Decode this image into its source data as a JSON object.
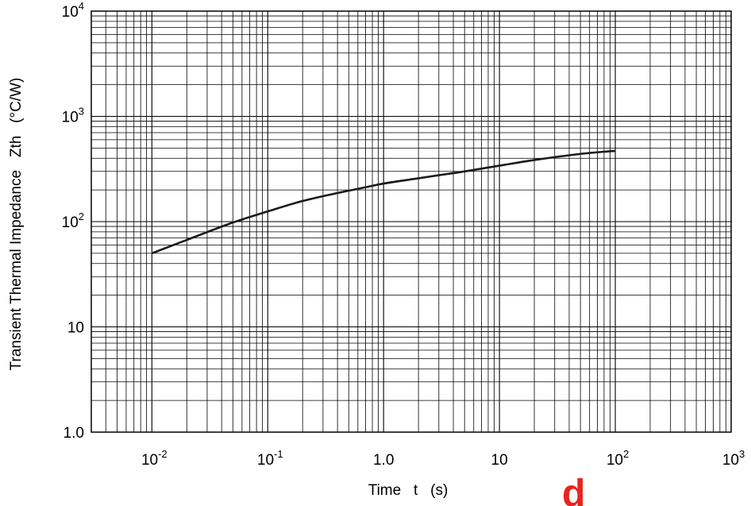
{
  "chart_data": {
    "type": "line",
    "xscale": "log",
    "yscale": "log",
    "xlim": [
      0.003,
      1000
    ],
    "ylim": [
      1,
      10000
    ],
    "grid": true,
    "xlabel": "Time   t   (s)",
    "ylabel": "Transient Thermal Impedance   Zth   (°C/W)",
    "x_ticks": [
      {
        "value": 0.01,
        "base": "10",
        "exp": "-2"
      },
      {
        "value": 0.1,
        "base": "10",
        "exp": "-1"
      },
      {
        "value": 1,
        "base": "1.0",
        "exp": ""
      },
      {
        "value": 10,
        "base": "10",
        "exp": ""
      },
      {
        "value": 100,
        "base": "10",
        "exp": "2"
      },
      {
        "value": 1000,
        "base": "10",
        "exp": "3"
      }
    ],
    "y_ticks": [
      {
        "value": 1,
        "base": "1.0",
        "exp": ""
      },
      {
        "value": 10,
        "base": "10",
        "exp": ""
      },
      {
        "value": 100,
        "base": "10",
        "exp": "2"
      },
      {
        "value": 1000,
        "base": "10",
        "exp": "3"
      },
      {
        "value": 10000,
        "base": "10",
        "exp": "4"
      }
    ],
    "series": [
      {
        "color": "#1a1a1a",
        "x": [
          0.01,
          0.02,
          0.05,
          0.1,
          0.2,
          0.4,
          0.7,
          1,
          2,
          3,
          5,
          10,
          20,
          50,
          100
        ],
        "y": [
          50,
          67,
          98,
          125,
          157,
          187,
          212,
          230,
          258,
          276,
          300,
          340,
          385,
          440,
          470
        ]
      }
    ]
  },
  "watermark": {
    "text": "d",
    "color": "#e8241c"
  }
}
